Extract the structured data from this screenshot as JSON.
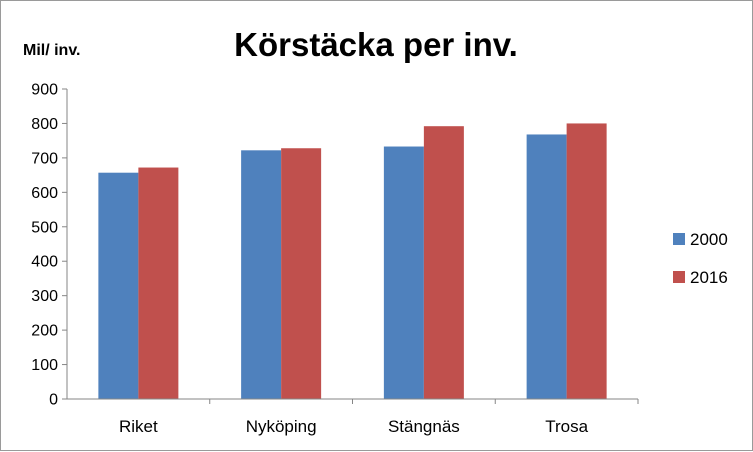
{
  "chart_data": {
    "type": "bar",
    "title": "Körstäcka per inv.",
    "ylabel": "Mil/ inv.",
    "xlabel": "",
    "categories": [
      "Riket",
      "Nyköping",
      "Stängnäs",
      "Trosa"
    ],
    "series": [
      {
        "name": "2000",
        "values": [
          657,
          722,
          733,
          768
        ],
        "color": "#4f81bd"
      },
      {
        "name": "2016",
        "values": [
          672,
          728,
          792,
          800
        ],
        "color": "#c0504d"
      }
    ],
    "ylim": [
      0,
      900
    ],
    "yticks": [
      "0",
      "100",
      "200",
      "300",
      "400",
      "500",
      "600",
      "700",
      "800",
      "900"
    ],
    "grid": false,
    "legend_position": "right"
  }
}
